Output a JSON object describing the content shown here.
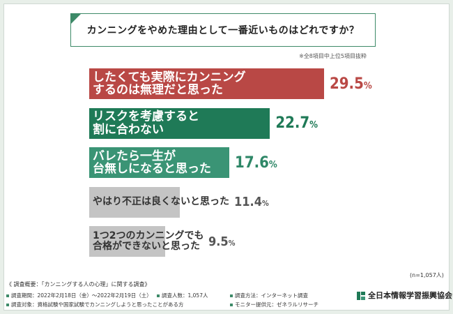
{
  "question": "カンニングをやめた理由として一番近いものはどれですか？",
  "note": "※全8項目中上位5項目抜粋",
  "chart_data": {
    "type": "bar",
    "orientation": "horizontal",
    "title": "カンニングをやめた理由として一番近いものはどれですか？",
    "unit": "%",
    "categories": [
      "したくても実際にカンニングするのは無理だと思った",
      "リスクを考慮すると割に合わない",
      "バレたら一生が台無しになると思った",
      "やはり不正は良くないと思った",
      "1つ2つのカンニングでも合格ができないと思った"
    ],
    "values": [
      29.5,
      22.7,
      17.6,
      11.4,
      9.5
    ],
    "bars": [
      {
        "line1": "したくても実際にカンニング",
        "line2": "するのは無理だと思った",
        "value": 29.5,
        "num": "29.5",
        "pct": "%",
        "color": "#b94845",
        "text_color": "#ffffff",
        "value_color": "#b94845"
      },
      {
        "line1": "リスクを考慮すると",
        "line2": "割に合わない",
        "value": 22.7,
        "num": "22.7",
        "pct": "%",
        "color": "#1f7a57",
        "text_color": "#ffffff",
        "value_color": "#1f7a57"
      },
      {
        "line1": "バレたら一生が",
        "line2": "台無しになると思った",
        "value": 17.6,
        "num": "17.6",
        "pct": "%",
        "color": "#3a9475",
        "text_color": "#ffffff",
        "value_color": "#2e8767"
      },
      {
        "line1": "やはり不正は良くないと思った",
        "line2": "",
        "value": 11.4,
        "num": "11.4",
        "pct": "%",
        "color": "#c4c4c4",
        "text_color": "#333333",
        "value_color": "#555555"
      },
      {
        "line1": "1つ2つのカンニングでも",
        "line2": "合格ができないと思った",
        "value": 9.5,
        "num": "9.5",
        "pct": "%",
        "color": "#c4c4c4",
        "text_color": "#333333",
        "value_color": "#555555"
      }
    ],
    "n": "(n=1,057人)"
  },
  "footer": {
    "title": "《 調査概要：「カンニングする人の心理」に関する調査》",
    "period": "調査期間：2022年2月18日（金）〜2022年2月19日（土）",
    "respondents": "調査人数：1,057人",
    "method": "調査方法：インターネット調査",
    "target": "調査対象：資格試験や国家試験でカンニングしようと思ったことがある方",
    "provider": "モニター提供元：ゼネラルリサーチ",
    "org": "全日本情報学習振興協会"
  }
}
